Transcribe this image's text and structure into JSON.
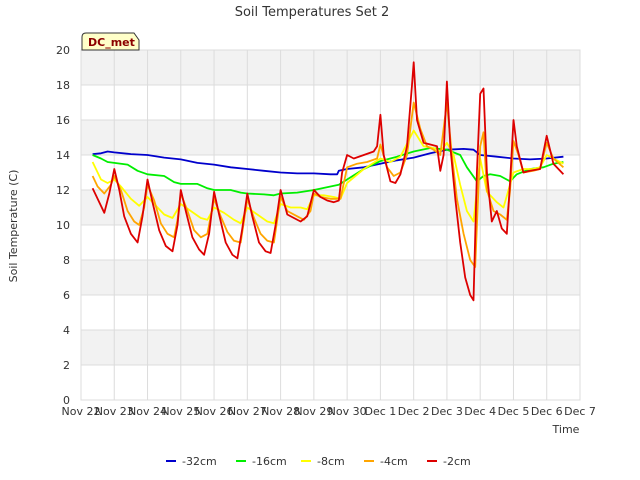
{
  "chart_data": {
    "type": "line",
    "title": "Soil Temperatures Set 2",
    "xlabel": "Time",
    "ylabel": "Soil Temperature (C)",
    "station_label": "DC_met",
    "ylim": [
      0,
      20
    ],
    "xlim": [
      0,
      15
    ],
    "y_ticks": [
      0,
      2,
      4,
      6,
      8,
      10,
      12,
      14,
      16,
      18,
      20
    ],
    "x_ticks": [
      {
        "pos": 0,
        "label": "Nov 22"
      },
      {
        "pos": 1,
        "label": "Nov 23"
      },
      {
        "pos": 2,
        "label": "Nov 24"
      },
      {
        "pos": 3,
        "label": "Nov 25"
      },
      {
        "pos": 4,
        "label": "Nov 26"
      },
      {
        "pos": 5,
        "label": "Nov 27"
      },
      {
        "pos": 6,
        "label": "Nov 28"
      },
      {
        "pos": 7,
        "label": "Nov 29"
      },
      {
        "pos": 8,
        "label": "Nov 30"
      },
      {
        "pos": 9,
        "label": "Dec 1"
      },
      {
        "pos": 10,
        "label": "Dec 2"
      },
      {
        "pos": 11,
        "label": "Dec 3"
      },
      {
        "pos": 12,
        "label": "Dec 4"
      },
      {
        "pos": 13,
        "label": "Dec 5"
      },
      {
        "pos": 14,
        "label": "Dec 6"
      },
      {
        "pos": 15,
        "label": "Dec 7"
      }
    ],
    "grid": true,
    "legend_position": "bottom",
    "series": [
      {
        "name": "-32cm",
        "color": "#0000cc",
        "points": [
          [
            0.35,
            14.05
          ],
          [
            0.6,
            14.1
          ],
          [
            0.8,
            14.2
          ],
          [
            1.0,
            14.15
          ],
          [
            1.5,
            14.05
          ],
          [
            2.0,
            14.0
          ],
          [
            2.5,
            13.85
          ],
          [
            3.0,
            13.75
          ],
          [
            3.5,
            13.55
          ],
          [
            4.0,
            13.45
          ],
          [
            4.5,
            13.3
          ],
          [
            5.0,
            13.2
          ],
          [
            5.5,
            13.1
          ],
          [
            6.0,
            13.0
          ],
          [
            6.5,
            12.95
          ],
          [
            7.0,
            12.95
          ],
          [
            7.5,
            12.9
          ],
          [
            7.7,
            12.9
          ],
          [
            7.75,
            13.1
          ],
          [
            8.0,
            13.2
          ],
          [
            8.5,
            13.3
          ],
          [
            9.0,
            13.5
          ],
          [
            9.5,
            13.7
          ],
          [
            10.0,
            13.85
          ],
          [
            10.5,
            14.1
          ],
          [
            11.0,
            14.3
          ],
          [
            11.5,
            14.35
          ],
          [
            11.8,
            14.3
          ],
          [
            12.0,
            14.0
          ],
          [
            12.5,
            13.9
          ],
          [
            13.0,
            13.8
          ],
          [
            13.5,
            13.75
          ],
          [
            14.0,
            13.8
          ],
          [
            14.5,
            13.9
          ]
        ]
      },
      {
        "name": "-16cm",
        "color": "#00ee00",
        "points": [
          [
            0.35,
            14.0
          ],
          [
            0.6,
            13.8
          ],
          [
            0.8,
            13.6
          ],
          [
            1.0,
            13.55
          ],
          [
            1.4,
            13.45
          ],
          [
            1.7,
            13.1
          ],
          [
            2.0,
            12.9
          ],
          [
            2.5,
            12.8
          ],
          [
            2.8,
            12.45
          ],
          [
            3.0,
            12.35
          ],
          [
            3.5,
            12.35
          ],
          [
            3.8,
            12.1
          ],
          [
            4.0,
            12.0
          ],
          [
            4.5,
            12.0
          ],
          [
            4.8,
            11.85
          ],
          [
            5.0,
            11.8
          ],
          [
            5.5,
            11.75
          ],
          [
            5.8,
            11.7
          ],
          [
            6.0,
            11.8
          ],
          [
            6.5,
            11.85
          ],
          [
            7.0,
            12.0
          ],
          [
            7.5,
            12.2
          ],
          [
            7.75,
            12.3
          ],
          [
            8.0,
            12.6
          ],
          [
            8.5,
            13.2
          ],
          [
            9.0,
            13.65
          ],
          [
            9.5,
            13.9
          ],
          [
            10.0,
            14.2
          ],
          [
            10.5,
            14.4
          ],
          [
            11.0,
            14.3
          ],
          [
            11.4,
            14.0
          ],
          [
            11.6,
            13.3
          ],
          [
            11.9,
            12.5
          ],
          [
            12.1,
            12.8
          ],
          [
            12.3,
            12.9
          ],
          [
            12.6,
            12.8
          ],
          [
            12.9,
            12.5
          ],
          [
            13.1,
            12.9
          ],
          [
            13.5,
            13.2
          ],
          [
            13.9,
            13.3
          ],
          [
            14.2,
            13.5
          ],
          [
            14.5,
            13.6
          ]
        ]
      },
      {
        "name": "-8cm",
        "color": "#ffff00",
        "points": [
          [
            0.35,
            13.6
          ],
          [
            0.6,
            12.6
          ],
          [
            0.8,
            12.4
          ],
          [
            1.0,
            12.6
          ],
          [
            1.2,
            12.2
          ],
          [
            1.5,
            11.5
          ],
          [
            1.75,
            11.1
          ],
          [
            2.0,
            11.6
          ],
          [
            2.2,
            11.2
          ],
          [
            2.5,
            10.6
          ],
          [
            2.75,
            10.4
          ],
          [
            3.0,
            11.2
          ],
          [
            3.3,
            10.8
          ],
          [
            3.6,
            10.4
          ],
          [
            3.8,
            10.3
          ],
          [
            4.0,
            11.0
          ],
          [
            4.3,
            10.7
          ],
          [
            4.6,
            10.3
          ],
          [
            4.8,
            10.1
          ],
          [
            5.0,
            11.0
          ],
          [
            5.3,
            10.6
          ],
          [
            5.6,
            10.2
          ],
          [
            5.8,
            10.1
          ],
          [
            6.0,
            11.2
          ],
          [
            6.3,
            11.0
          ],
          [
            6.6,
            11.0
          ],
          [
            6.8,
            10.9
          ],
          [
            7.0,
            11.7
          ],
          [
            7.3,
            11.7
          ],
          [
            7.6,
            11.6
          ],
          [
            7.8,
            11.5
          ],
          [
            8.0,
            12.4
          ],
          [
            8.5,
            13.2
          ],
          [
            9.0,
            13.8
          ],
          [
            9.3,
            13.6
          ],
          [
            9.6,
            13.9
          ],
          [
            10.0,
            15.4
          ],
          [
            10.3,
            14.5
          ],
          [
            10.6,
            14.4
          ],
          [
            10.8,
            14.2
          ],
          [
            11.0,
            14.7
          ],
          [
            11.2,
            14.0
          ],
          [
            11.4,
            12.3
          ],
          [
            11.6,
            10.8
          ],
          [
            11.8,
            10.2
          ],
          [
            12.0,
            13.8
          ],
          [
            12.2,
            11.9
          ],
          [
            12.5,
            11.3
          ],
          [
            12.7,
            11.0
          ],
          [
            13.0,
            13.0
          ],
          [
            13.3,
            13.2
          ],
          [
            13.6,
            13.2
          ],
          [
            13.8,
            13.3
          ],
          [
            14.0,
            14.0
          ],
          [
            14.2,
            13.8
          ],
          [
            14.5,
            13.5
          ]
        ]
      },
      {
        "name": "-4cm",
        "color": "#ffa500",
        "points": [
          [
            0.35,
            12.8
          ],
          [
            0.5,
            12.2
          ],
          [
            0.7,
            11.8
          ],
          [
            0.9,
            12.3
          ],
          [
            1.0,
            12.8
          ],
          [
            1.2,
            12.0
          ],
          [
            1.4,
            10.8
          ],
          [
            1.6,
            10.2
          ],
          [
            1.75,
            10.0
          ],
          [
            1.9,
            11.0
          ],
          [
            2.0,
            12.3
          ],
          [
            2.2,
            11.4
          ],
          [
            2.4,
            10.1
          ],
          [
            2.6,
            9.5
          ],
          [
            2.8,
            9.3
          ],
          [
            2.9,
            10.3
          ],
          [
            3.0,
            11.8
          ],
          [
            3.2,
            10.8
          ],
          [
            3.4,
            9.7
          ],
          [
            3.6,
            9.3
          ],
          [
            3.8,
            9.5
          ],
          [
            4.0,
            11.5
          ],
          [
            4.2,
            10.5
          ],
          [
            4.4,
            9.6
          ],
          [
            4.6,
            9.1
          ],
          [
            4.8,
            9.0
          ],
          [
            5.0,
            11.5
          ],
          [
            5.2,
            10.4
          ],
          [
            5.4,
            9.5
          ],
          [
            5.6,
            9.1
          ],
          [
            5.8,
            9.0
          ],
          [
            6.0,
            11.6
          ],
          [
            6.2,
            10.8
          ],
          [
            6.5,
            10.5
          ],
          [
            6.7,
            10.3
          ],
          [
            6.9,
            10.8
          ],
          [
            7.0,
            11.8
          ],
          [
            7.2,
            11.6
          ],
          [
            7.5,
            11.5
          ],
          [
            7.8,
            11.5
          ],
          [
            8.0,
            13.3
          ],
          [
            8.3,
            13.5
          ],
          [
            8.6,
            13.6
          ],
          [
            8.9,
            13.8
          ],
          [
            9.0,
            14.6
          ],
          [
            9.2,
            13.3
          ],
          [
            9.4,
            12.8
          ],
          [
            9.6,
            13.0
          ],
          [
            9.8,
            14.0
          ],
          [
            10.0,
            17.0
          ],
          [
            10.2,
            15.5
          ],
          [
            10.4,
            14.5
          ],
          [
            10.6,
            14.3
          ],
          [
            10.8,
            14.0
          ],
          [
            11.0,
            17.0
          ],
          [
            11.15,
            14.0
          ],
          [
            11.3,
            11.5
          ],
          [
            11.5,
            9.5
          ],
          [
            11.7,
            8.0
          ],
          [
            11.85,
            7.6
          ],
          [
            12.0,
            14.5
          ],
          [
            12.1,
            15.3
          ],
          [
            12.2,
            12.0
          ],
          [
            12.4,
            10.8
          ],
          [
            12.6,
            10.6
          ],
          [
            12.8,
            10.3
          ],
          [
            12.9,
            12.0
          ],
          [
            13.0,
            14.8
          ],
          [
            13.15,
            14.0
          ],
          [
            13.3,
            13.0
          ],
          [
            13.6,
            13.1
          ],
          [
            13.8,
            13.2
          ],
          [
            14.0,
            14.7
          ],
          [
            14.2,
            13.8
          ],
          [
            14.5,
            13.3
          ]
        ]
      },
      {
        "name": "-2cm",
        "color": "#dd0000",
        "points": [
          [
            0.35,
            12.1
          ],
          [
            0.5,
            11.5
          ],
          [
            0.7,
            10.7
          ],
          [
            0.85,
            11.8
          ],
          [
            1.0,
            13.2
          ],
          [
            1.15,
            12.0
          ],
          [
            1.3,
            10.5
          ],
          [
            1.5,
            9.5
          ],
          [
            1.7,
            9.0
          ],
          [
            1.85,
            10.5
          ],
          [
            2.0,
            12.6
          ],
          [
            2.15,
            11.3
          ],
          [
            2.35,
            9.7
          ],
          [
            2.55,
            8.8
          ],
          [
            2.75,
            8.5
          ],
          [
            2.9,
            10.0
          ],
          [
            3.0,
            12.0
          ],
          [
            3.15,
            10.8
          ],
          [
            3.35,
            9.3
          ],
          [
            3.55,
            8.6
          ],
          [
            3.7,
            8.3
          ],
          [
            3.85,
            9.5
          ],
          [
            4.0,
            11.9
          ],
          [
            4.15,
            10.6
          ],
          [
            4.35,
            9.0
          ],
          [
            4.55,
            8.3
          ],
          [
            4.7,
            8.1
          ],
          [
            4.85,
            9.8
          ],
          [
            5.0,
            11.8
          ],
          [
            5.15,
            10.5
          ],
          [
            5.35,
            9.0
          ],
          [
            5.55,
            8.5
          ],
          [
            5.7,
            8.4
          ],
          [
            5.85,
            10.0
          ],
          [
            6.0,
            12.0
          ],
          [
            6.2,
            10.6
          ],
          [
            6.4,
            10.4
          ],
          [
            6.6,
            10.2
          ],
          [
            6.8,
            10.5
          ],
          [
            7.0,
            12.0
          ],
          [
            7.2,
            11.6
          ],
          [
            7.4,
            11.4
          ],
          [
            7.6,
            11.3
          ],
          [
            7.75,
            11.4
          ],
          [
            7.85,
            13.0
          ],
          [
            8.0,
            14.0
          ],
          [
            8.2,
            13.8
          ],
          [
            8.5,
            14.0
          ],
          [
            8.8,
            14.2
          ],
          [
            8.9,
            14.5
          ],
          [
            9.0,
            16.3
          ],
          [
            9.1,
            14.0
          ],
          [
            9.3,
            12.5
          ],
          [
            9.45,
            12.4
          ],
          [
            9.6,
            12.9
          ],
          [
            9.8,
            14.5
          ],
          [
            9.95,
            18.0
          ],
          [
            10.0,
            19.3
          ],
          [
            10.1,
            16.0
          ],
          [
            10.3,
            14.7
          ],
          [
            10.5,
            14.6
          ],
          [
            10.7,
            14.5
          ],
          [
            10.8,
            13.1
          ],
          [
            10.9,
            14.0
          ],
          [
            11.0,
            18.2
          ],
          [
            11.1,
            14.5
          ],
          [
            11.25,
            11.5
          ],
          [
            11.4,
            9.0
          ],
          [
            11.55,
            7.0
          ],
          [
            11.7,
            6.0
          ],
          [
            11.8,
            5.7
          ],
          [
            11.9,
            13.0
          ],
          [
            12.0,
            17.5
          ],
          [
            12.1,
            17.8
          ],
          [
            12.2,
            13.0
          ],
          [
            12.35,
            10.2
          ],
          [
            12.5,
            10.8
          ],
          [
            12.65,
            9.8
          ],
          [
            12.8,
            9.5
          ],
          [
            12.9,
            12.5
          ],
          [
            13.0,
            16.0
          ],
          [
            13.1,
            14.5
          ],
          [
            13.3,
            13.0
          ],
          [
            13.5,
            13.1
          ],
          [
            13.8,
            13.2
          ],
          [
            14.0,
            15.1
          ],
          [
            14.2,
            13.5
          ],
          [
            14.5,
            12.9
          ]
        ]
      }
    ]
  }
}
